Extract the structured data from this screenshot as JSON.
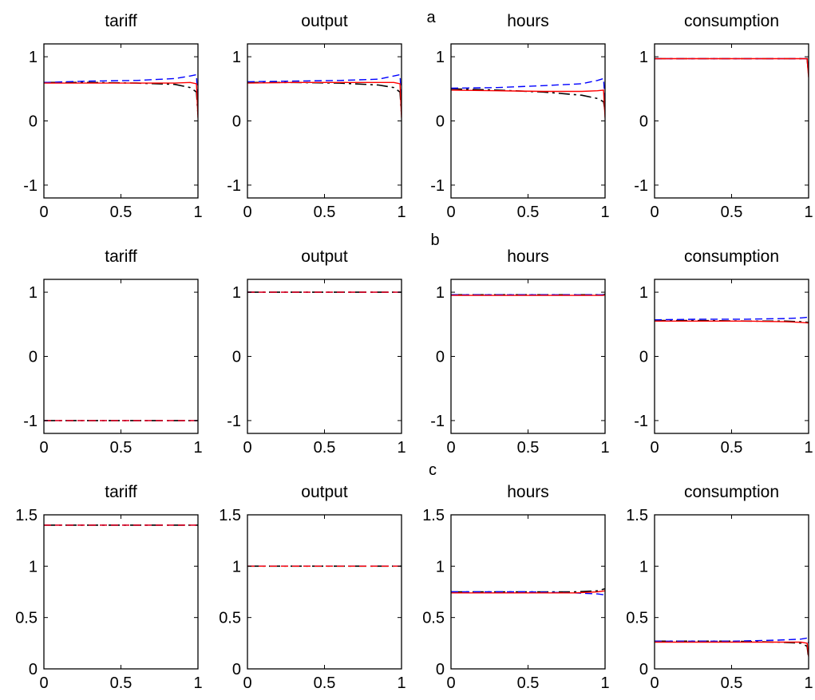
{
  "row_labels": [
    "a",
    "b",
    "c"
  ],
  "colors": {
    "black": "#000000",
    "red": "#ff0000",
    "blue": "#0000ff"
  },
  "chart_data": [
    {
      "panel": "a",
      "title": "tariff",
      "type": "line",
      "xlim": [
        0,
        1
      ],
      "ylim": [
        -1.2,
        1.2
      ],
      "xticks": [
        "0",
        "0.5",
        "1"
      ],
      "yticks": [
        "1",
        "0",
        "-1"
      ],
      "ytick_values": [
        1,
        0,
        -1
      ],
      "series": [
        {
          "color": "black",
          "dash": "dashdot",
          "values": [
            [
              0,
              0.6
            ],
            [
              0.3,
              0.6
            ],
            [
              0.6,
              0.59
            ],
            [
              0.85,
              0.57
            ],
            [
              0.95,
              0.52
            ],
            [
              0.99,
              0.45
            ],
            [
              1,
              0.1
            ]
          ]
        },
        {
          "color": "blue",
          "dash": "dashed",
          "values": [
            [
              0,
              0.6
            ],
            [
              0.3,
              0.62
            ],
            [
              0.6,
              0.63
            ],
            [
              0.85,
              0.66
            ],
            [
              0.95,
              0.7
            ],
            [
              0.99,
              0.72
            ],
            [
              1,
              0.25
            ]
          ]
        },
        {
          "color": "red",
          "dash": "solid",
          "values": [
            [
              0,
              0.59
            ],
            [
              0.3,
              0.59
            ],
            [
              0.6,
              0.59
            ],
            [
              0.85,
              0.59
            ],
            [
              0.95,
              0.6
            ],
            [
              0.99,
              0.58
            ],
            [
              1,
              0.05
            ]
          ]
        }
      ]
    },
    {
      "panel": "a",
      "title": "output",
      "type": "line",
      "xlim": [
        0,
        1
      ],
      "ylim": [
        -1.2,
        1.2
      ],
      "xticks": [
        "0",
        "0.5",
        "1"
      ],
      "yticks": [
        "1",
        "0",
        "-1"
      ],
      "ytick_values": [
        1,
        0,
        -1
      ],
      "series": [
        {
          "color": "black",
          "dash": "dashdot",
          "values": [
            [
              0,
              0.6
            ],
            [
              0.3,
              0.6
            ],
            [
              0.6,
              0.59
            ],
            [
              0.85,
              0.56
            ],
            [
              0.95,
              0.52
            ],
            [
              0.99,
              0.45
            ],
            [
              1,
              0.1
            ]
          ]
        },
        {
          "color": "blue",
          "dash": "dashed",
          "values": [
            [
              0,
              0.61
            ],
            [
              0.3,
              0.62
            ],
            [
              0.6,
              0.63
            ],
            [
              0.85,
              0.65
            ],
            [
              0.95,
              0.7
            ],
            [
              0.99,
              0.72
            ],
            [
              1,
              0.3
            ]
          ]
        },
        {
          "color": "red",
          "dash": "solid",
          "values": [
            [
              0,
              0.59
            ],
            [
              0.3,
              0.6
            ],
            [
              0.6,
              0.6
            ],
            [
              0.85,
              0.6
            ],
            [
              0.95,
              0.6
            ],
            [
              0.99,
              0.58
            ],
            [
              1,
              0.05
            ]
          ]
        }
      ]
    },
    {
      "panel": "a",
      "title": "hours",
      "type": "line",
      "xlim": [
        0,
        1
      ],
      "ylim": [
        -1.2,
        1.2
      ],
      "xticks": [
        "0",
        "0.5",
        "1"
      ],
      "yticks": [
        "1",
        "0",
        "-1"
      ],
      "ytick_values": [
        1,
        0,
        -1
      ],
      "series": [
        {
          "color": "black",
          "dash": "dashdot",
          "values": [
            [
              0,
              0.5
            ],
            [
              0.3,
              0.48
            ],
            [
              0.6,
              0.45
            ],
            [
              0.85,
              0.4
            ],
            [
              0.95,
              0.35
            ],
            [
              0.99,
              0.3
            ],
            [
              1,
              0.15
            ]
          ]
        },
        {
          "color": "blue",
          "dash": "dashed",
          "values": [
            [
              0,
              0.51
            ],
            [
              0.3,
              0.52
            ],
            [
              0.6,
              0.55
            ],
            [
              0.85,
              0.58
            ],
            [
              0.95,
              0.63
            ],
            [
              0.99,
              0.66
            ],
            [
              1,
              0.3
            ]
          ]
        },
        {
          "color": "red",
          "dash": "solid",
          "values": [
            [
              0,
              0.48
            ],
            [
              0.3,
              0.47
            ],
            [
              0.6,
              0.46
            ],
            [
              0.85,
              0.46
            ],
            [
              0.95,
              0.47
            ],
            [
              0.99,
              0.48
            ],
            [
              1,
              0.05
            ]
          ]
        }
      ]
    },
    {
      "panel": "a",
      "title": "consumption",
      "type": "line",
      "xlim": [
        0,
        1
      ],
      "ylim": [
        -1.2,
        1.2
      ],
      "xticks": [
        "0",
        "0.5",
        "1"
      ],
      "yticks": [
        "1",
        "0",
        "-1"
      ],
      "ytick_values": [
        1,
        0,
        -1
      ],
      "series": [
        {
          "color": "black",
          "dash": "dashdot",
          "values": [
            [
              0,
              0.97
            ],
            [
              0.5,
              0.97
            ],
            [
              0.99,
              0.97
            ],
            [
              1,
              0.72
            ]
          ]
        },
        {
          "color": "blue",
          "dash": "dashed",
          "values": [
            [
              0,
              0.97
            ],
            [
              0.5,
              0.97
            ],
            [
              0.99,
              0.97
            ],
            [
              1,
              0.8
            ]
          ]
        },
        {
          "color": "red",
          "dash": "solid",
          "values": [
            [
              0,
              0.97
            ],
            [
              0.5,
              0.97
            ],
            [
              0.99,
              0.97
            ],
            [
              1,
              0.68
            ]
          ]
        }
      ]
    },
    {
      "panel": "b",
      "title": "tariff",
      "type": "line",
      "xlim": [
        0,
        1
      ],
      "ylim": [
        -1.2,
        1.2
      ],
      "xticks": [
        "0",
        "0.5",
        "1"
      ],
      "yticks": [
        "1",
        "0",
        "-1"
      ],
      "ytick_values": [
        1,
        0,
        -1
      ],
      "series": [
        {
          "color": "black",
          "dash": "dashdot",
          "values": [
            [
              0,
              -1.0
            ],
            [
              1,
              -1.0
            ]
          ]
        },
        {
          "color": "blue",
          "dash": "dashed",
          "values": [
            [
              0,
              -1.0
            ],
            [
              1,
              -1.0
            ]
          ]
        },
        {
          "color": "red",
          "dash": "dashed",
          "values": [
            [
              0,
              -1.0
            ],
            [
              1,
              -1.0
            ]
          ]
        }
      ]
    },
    {
      "panel": "b",
      "title": "output",
      "type": "line",
      "xlim": [
        0,
        1
      ],
      "ylim": [
        -1.2,
        1.2
      ],
      "xticks": [
        "0",
        "0.5",
        "1"
      ],
      "yticks": [
        "1",
        "0",
        "-1"
      ],
      "ytick_values": [
        1,
        0,
        -1
      ],
      "series": [
        {
          "color": "black",
          "dash": "dashdot",
          "values": [
            [
              0,
              1.0
            ],
            [
              1,
              1.0
            ]
          ]
        },
        {
          "color": "blue",
          "dash": "dashed",
          "values": [
            [
              0,
              1.0
            ],
            [
              1,
              1.0
            ]
          ]
        },
        {
          "color": "red",
          "dash": "dashed",
          "values": [
            [
              0,
              1.0
            ],
            [
              1,
              1.0
            ]
          ]
        }
      ]
    },
    {
      "panel": "b",
      "title": "hours",
      "type": "line",
      "xlim": [
        0,
        1
      ],
      "ylim": [
        -1.2,
        1.2
      ],
      "xticks": [
        "0",
        "0.5",
        "1"
      ],
      "yticks": [
        "1",
        "0",
        "-1"
      ],
      "ytick_values": [
        1,
        0,
        -1
      ],
      "series": [
        {
          "color": "black",
          "dash": "dashdot",
          "values": [
            [
              0,
              0.96
            ],
            [
              0.5,
              0.96
            ],
            [
              0.99,
              0.96
            ],
            [
              1,
              0.97
            ]
          ]
        },
        {
          "color": "blue",
          "dash": "dashed",
          "values": [
            [
              0,
              0.96
            ],
            [
              0.5,
              0.96
            ],
            [
              0.99,
              0.96
            ],
            [
              1,
              0.98
            ]
          ]
        },
        {
          "color": "red",
          "dash": "solid",
          "values": [
            [
              0,
              0.95
            ],
            [
              0.5,
              0.95
            ],
            [
              0.99,
              0.95
            ],
            [
              1,
              0.96
            ]
          ]
        }
      ]
    },
    {
      "panel": "b",
      "title": "consumption",
      "type": "line",
      "xlim": [
        0,
        1
      ],
      "ylim": [
        -1.2,
        1.2
      ],
      "xticks": [
        "0",
        "0.5",
        "1"
      ],
      "yticks": [
        "1",
        "0",
        "-1"
      ],
      "ytick_values": [
        1,
        0,
        -1
      ],
      "series": [
        {
          "color": "black",
          "dash": "dashdot",
          "values": [
            [
              0,
              0.56
            ],
            [
              0.3,
              0.56
            ],
            [
              0.6,
              0.55
            ],
            [
              0.85,
              0.55
            ],
            [
              0.95,
              0.54
            ],
            [
              1,
              0.53
            ]
          ]
        },
        {
          "color": "blue",
          "dash": "dashed",
          "values": [
            [
              0,
              0.57
            ],
            [
              0.3,
              0.58
            ],
            [
              0.6,
              0.58
            ],
            [
              0.85,
              0.59
            ],
            [
              0.95,
              0.6
            ],
            [
              1,
              0.61
            ]
          ]
        },
        {
          "color": "red",
          "dash": "solid",
          "values": [
            [
              0,
              0.55
            ],
            [
              0.3,
              0.55
            ],
            [
              0.6,
              0.55
            ],
            [
              0.85,
              0.54
            ],
            [
              0.95,
              0.53
            ],
            [
              1,
              0.52
            ]
          ]
        }
      ]
    },
    {
      "panel": "c",
      "title": "tariff",
      "type": "line",
      "xlim": [
        0,
        1
      ],
      "ylim": [
        0,
        1.5
      ],
      "xticks": [
        "0",
        "0.5",
        "1"
      ],
      "yticks": [
        "1.5",
        "1",
        "0.5",
        "0"
      ],
      "ytick_values": [
        1.5,
        1,
        0.5,
        0
      ],
      "series": [
        {
          "color": "black",
          "dash": "dashdot",
          "values": [
            [
              0,
              1.4
            ],
            [
              1,
              1.4
            ]
          ]
        },
        {
          "color": "blue",
          "dash": "dashed",
          "values": [
            [
              0,
              1.4
            ],
            [
              1,
              1.4
            ]
          ]
        },
        {
          "color": "red",
          "dash": "dashed",
          "values": [
            [
              0,
              1.4
            ],
            [
              1,
              1.4
            ]
          ]
        }
      ]
    },
    {
      "panel": "c",
      "title": "output",
      "type": "line",
      "xlim": [
        0,
        1
      ],
      "ylim": [
        0,
        1.5
      ],
      "xticks": [
        "0",
        "0.5",
        "1"
      ],
      "yticks": [
        "1.5",
        "1",
        "0.5",
        "0"
      ],
      "ytick_values": [
        1.5,
        1,
        0.5,
        0
      ],
      "series": [
        {
          "color": "black",
          "dash": "dashdot",
          "values": [
            [
              0,
              1.0
            ],
            [
              1,
              1.0
            ]
          ]
        },
        {
          "color": "blue",
          "dash": "dashed",
          "values": [
            [
              0,
              1.0
            ],
            [
              1,
              1.0
            ]
          ]
        },
        {
          "color": "red",
          "dash": "dashed",
          "values": [
            [
              0,
              1.0
            ],
            [
              1,
              1.0
            ]
          ]
        }
      ]
    },
    {
      "panel": "c",
      "title": "hours",
      "type": "line",
      "xlim": [
        0,
        1
      ],
      "ylim": [
        0,
        1.5
      ],
      "xticks": [
        "0",
        "0.5",
        "1"
      ],
      "yticks": [
        "1.5",
        "1",
        "0.5",
        "0"
      ],
      "ytick_values": [
        1.5,
        1,
        0.5,
        0
      ],
      "series": [
        {
          "color": "black",
          "dash": "dashdot",
          "values": [
            [
              0,
              0.75
            ],
            [
              0.5,
              0.75
            ],
            [
              0.8,
              0.75
            ],
            [
              0.95,
              0.76
            ],
            [
              1,
              0.78
            ]
          ]
        },
        {
          "color": "blue",
          "dash": "dashed",
          "values": [
            [
              0,
              0.75
            ],
            [
              0.5,
              0.75
            ],
            [
              0.8,
              0.74
            ],
            [
              0.95,
              0.73
            ],
            [
              1,
              0.72
            ]
          ]
        },
        {
          "color": "red",
          "dash": "solid",
          "values": [
            [
              0,
              0.74
            ],
            [
              0.5,
              0.74
            ],
            [
              0.8,
              0.74
            ],
            [
              0.95,
              0.75
            ],
            [
              1,
              0.76
            ]
          ]
        }
      ]
    },
    {
      "panel": "c",
      "title": "consumption",
      "type": "line",
      "xlim": [
        0,
        1
      ],
      "ylim": [
        0,
        1.5
      ],
      "xticks": [
        "0",
        "0.5",
        "1"
      ],
      "yticks": [
        "1.5",
        "1",
        "0.5",
        "0"
      ],
      "ytick_values": [
        1.5,
        1,
        0.5,
        0
      ],
      "series": [
        {
          "color": "black",
          "dash": "dashdot",
          "values": [
            [
              0,
              0.27
            ],
            [
              0.5,
              0.27
            ],
            [
              0.8,
              0.26
            ],
            [
              0.95,
              0.25
            ],
            [
              0.99,
              0.22
            ],
            [
              1,
              0.1
            ]
          ]
        },
        {
          "color": "blue",
          "dash": "dashed",
          "values": [
            [
              0,
              0.27
            ],
            [
              0.5,
              0.27
            ],
            [
              0.8,
              0.28
            ],
            [
              0.95,
              0.29
            ],
            [
              0.99,
              0.3
            ],
            [
              1,
              0.25
            ]
          ]
        },
        {
          "color": "red",
          "dash": "solid",
          "values": [
            [
              0,
              0.26
            ],
            [
              0.5,
              0.26
            ],
            [
              0.8,
              0.26
            ],
            [
              0.95,
              0.26
            ],
            [
              0.99,
              0.25
            ],
            [
              1,
              0.12
            ]
          ]
        }
      ]
    }
  ]
}
